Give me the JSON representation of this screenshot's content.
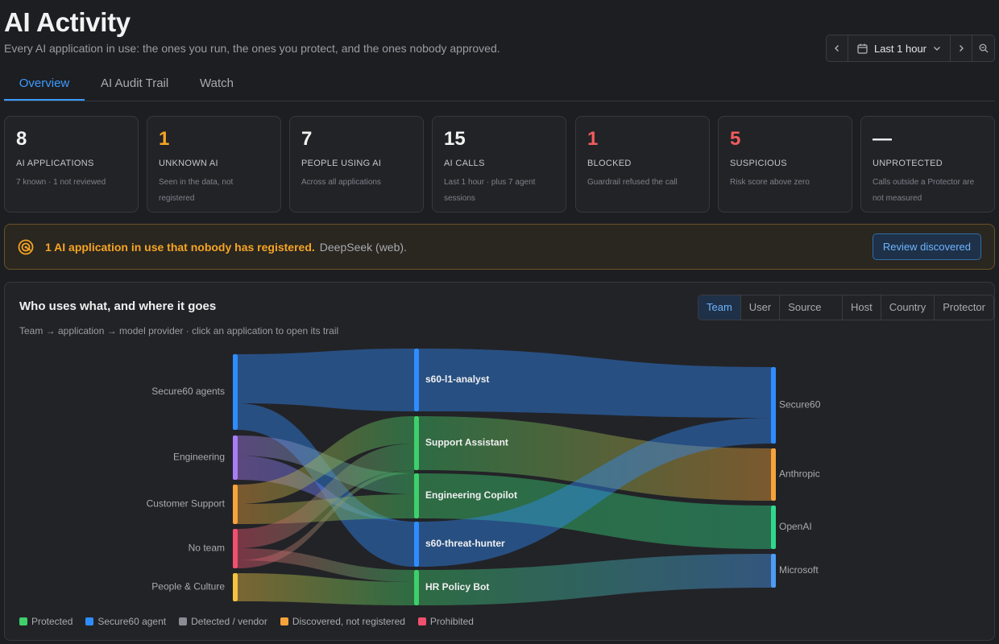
{
  "header": {
    "title": "AI Activity",
    "subtitle": "Every AI application in use: the ones you run, the ones you protect, and the ones nobody approved.",
    "time_range": "Last 1 hour"
  },
  "tabs": [
    {
      "label": "Overview",
      "active": true
    },
    {
      "label": "AI Audit Trail",
      "active": false
    },
    {
      "label": "Watch",
      "active": false
    }
  ],
  "stats": [
    {
      "value": "8",
      "label": "AI APPLICATIONS",
      "desc": "7 known · 1 not reviewed",
      "color": "#f2f2f2"
    },
    {
      "value": "1",
      "label": "UNKNOWN AI",
      "desc": "Seen in the data, not registered",
      "color": "#f5a524"
    },
    {
      "value": "7",
      "label": "PEOPLE USING AI",
      "desc": "Across all applications",
      "color": "#f2f2f2"
    },
    {
      "value": "15",
      "label": "AI CALLS",
      "desc": "Last 1 hour · plus 7 agent sessions",
      "color": "#f2f2f2"
    },
    {
      "value": "1",
      "label": "BLOCKED",
      "desc": "Guardrail refused the call",
      "color": "#f25c5c"
    },
    {
      "value": "5",
      "label": "SUSPICIOUS",
      "desc": "Risk score above zero",
      "color": "#f25c5c"
    },
    {
      "value": "—",
      "label": "UNPROTECTED",
      "desc": "Calls outside a Protector are not measured",
      "color": "#f2f2f2"
    }
  ],
  "alert": {
    "bold": "1 AI application in use that nobody has registered.",
    "rest": "DeepSeek (web).",
    "button": "Review discovered"
  },
  "panel": {
    "title": "Who uses what, and where it goes",
    "subtitle": "Team → application → model provider · click an application to open its trail",
    "groupby": [
      {
        "label": "Team",
        "active": true
      },
      {
        "label": "User",
        "active": false
      },
      {
        "label": "Source IP",
        "active": false
      },
      {
        "label": "Host",
        "active": false
      },
      {
        "label": "Country",
        "active": false
      },
      {
        "label": "Protector",
        "active": false
      }
    ]
  },
  "sankey": {
    "teams": [
      {
        "name": "Secure60 agents",
        "color": "#2f8cff"
      },
      {
        "name": "Engineering",
        "color": "#a97cf6"
      },
      {
        "name": "Customer Support",
        "color": "#f5a33a"
      },
      {
        "name": "No team",
        "color": "#f0506e"
      },
      {
        "name": "People & Culture",
        "color": "#f5c242"
      }
    ],
    "apps": [
      {
        "name": "s60-l1-analyst",
        "color": "#2f8cff"
      },
      {
        "name": "Support Assistant",
        "color": "#3ecf6a"
      },
      {
        "name": "Engineering Copilot",
        "color": "#3ecf6a"
      },
      {
        "name": "s60-threat-hunter",
        "color": "#2f8cff"
      },
      {
        "name": "HR Policy Bot",
        "color": "#3ecf6a"
      }
    ],
    "providers": [
      {
        "name": "Secure60",
        "color": "#2f8cff"
      },
      {
        "name": "Anthropic",
        "color": "#f5a33a"
      },
      {
        "name": "OpenAI",
        "color": "#2fd88a"
      },
      {
        "name": "Microsoft",
        "color": "#4b9df5"
      }
    ]
  },
  "legend": [
    {
      "label": "Protected",
      "color": "#3ecf6a"
    },
    {
      "label": "Secure60 agent",
      "color": "#2f8cff"
    },
    {
      "label": "Detected / vendor",
      "color": "#8a8d94"
    },
    {
      "label": "Discovered, not registered",
      "color": "#f5a33a"
    },
    {
      "label": "Prohibited",
      "color": "#f0506e"
    }
  ]
}
